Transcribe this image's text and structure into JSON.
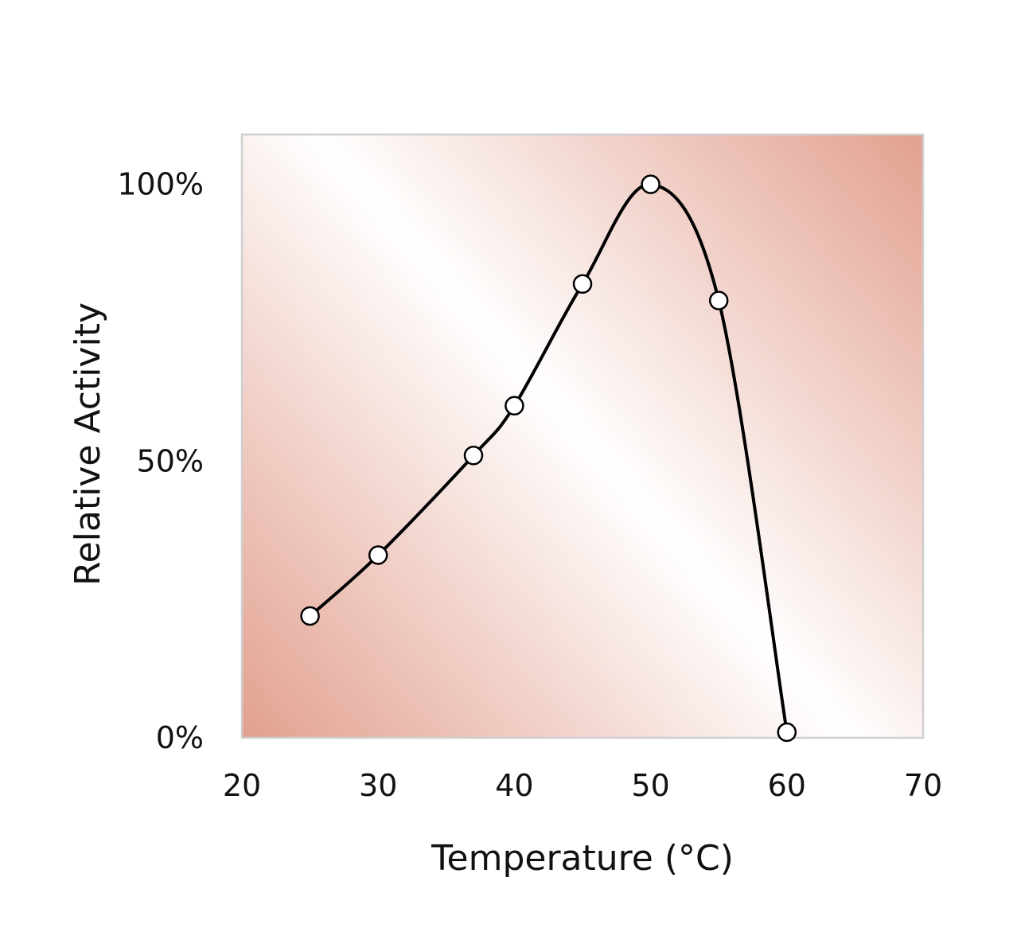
{
  "chart_data": {
    "type": "line",
    "title": "",
    "xlabel": "Temperature (°C)",
    "ylabel": "Relative Activity",
    "xlim": [
      20,
      70
    ],
    "ylim": [
      0,
      1.09
    ],
    "x_ticks": [
      {
        "value": 20,
        "label": "20"
      },
      {
        "value": 30,
        "label": "30"
      },
      {
        "value": 40,
        "label": "40"
      },
      {
        "value": 50,
        "label": "50"
      },
      {
        "value": 60,
        "label": "60"
      },
      {
        "value": 70,
        "label": "70"
      }
    ],
    "y_ticks": [
      {
        "value": 0,
        "label": "0%"
      },
      {
        "value": 0.5,
        "label": "50%"
      },
      {
        "value": 1.0,
        "label": "100%"
      }
    ],
    "series": [
      {
        "x": [
          25,
          30,
          37,
          40,
          45,
          50,
          55,
          60
        ],
        "y": [
          0.22,
          0.33,
          0.51,
          0.6,
          0.82,
          1.0,
          0.79,
          0.01
        ],
        "color": "#000000",
        "marker": "circle",
        "marker_fill": "#ffffff",
        "smooth": true
      }
    ],
    "grid": false,
    "legend": "none",
    "background": {
      "type": "diagonal-gradient",
      "colors": [
        "#e2a08f",
        "#ffffff",
        "#e2a08f"
      ]
    },
    "frame_color": "#cfcfcf"
  }
}
